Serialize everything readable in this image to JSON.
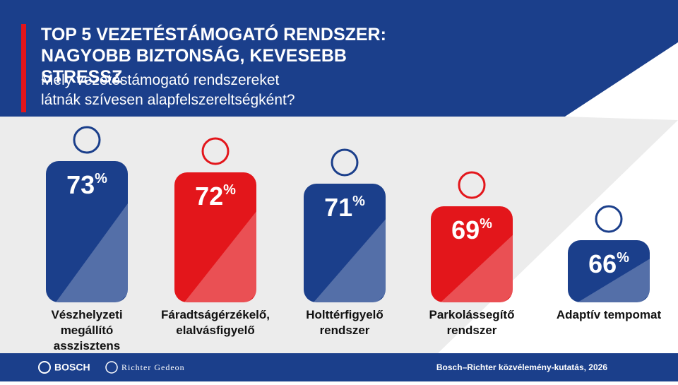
{
  "chart_data": {
    "type": "bar",
    "title": "TOP 5 VEZETÉSTÁMOGATÓ RENDSZER: NAGYOBB BIZTONSÁG, KEVESEBB STRESSZ",
    "subtitle": "Mely vezetéstámogató rendszereket látnák szívesen alapfelszereltségként?",
    "categories": [
      "Vészhelyzeti megállító asszisztens",
      "Fáradtságérzékelő, elalvásfigyelő",
      "Holttérfigyelő rendszer",
      "Parkolássegítő rendszer",
      "Adaptív tempomat"
    ],
    "values": [
      73,
      72,
      71,
      69,
      66
    ],
    "value_labels": [
      "73%",
      "72%",
      "71%",
      "69%",
      "66%"
    ],
    "colors": [
      "#1b3f8b",
      "#e3161b",
      "#1b3f8b",
      "#e3161b",
      "#1b3f8b"
    ],
    "source": "Bosch–Richter közvélemény-kutatás, 2026",
    "logos": [
      "BOSCH",
      "Richter Gedeon"
    ]
  }
}
